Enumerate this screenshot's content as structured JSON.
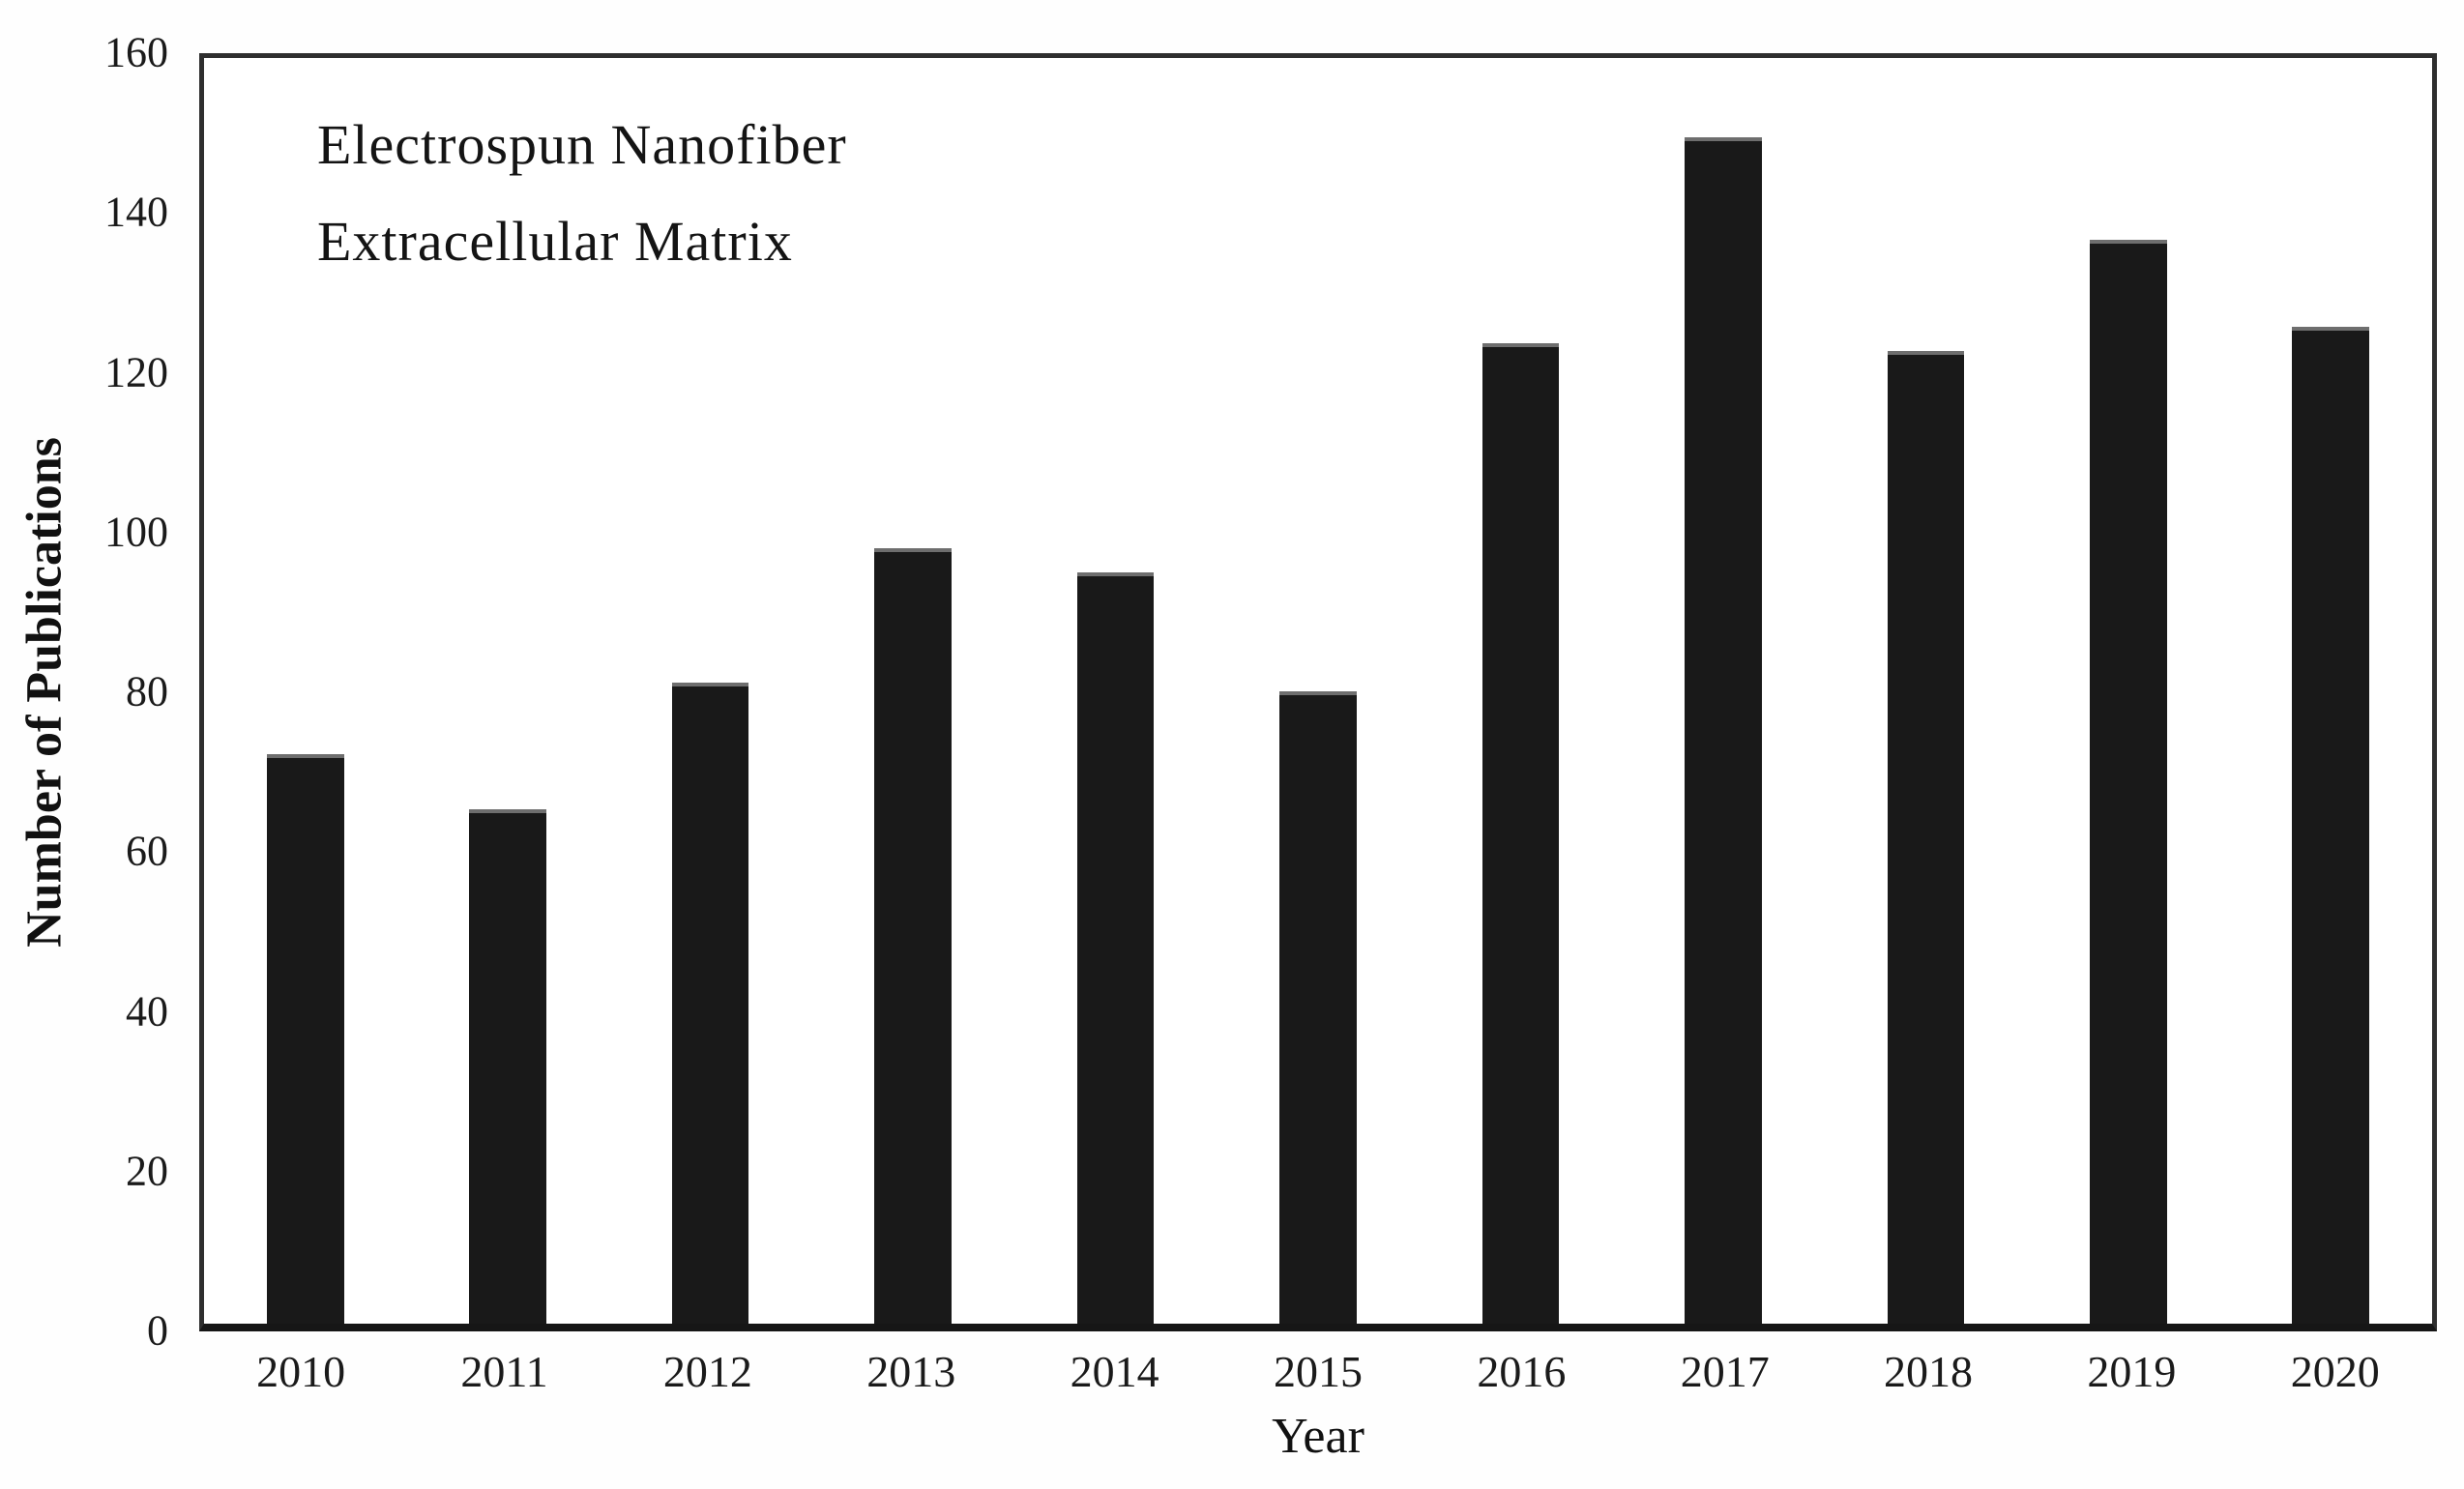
{
  "chart_data": {
    "type": "bar",
    "title": "",
    "xlabel": "Year",
    "ylabel": "Number of Publications",
    "categories": [
      "2010",
      "2011",
      "2012",
      "2013",
      "2014",
      "2015",
      "2016",
      "2017",
      "2018",
      "2019",
      "2020"
    ],
    "values": [
      72,
      65,
      81,
      98,
      95,
      80,
      124,
      150,
      123,
      137,
      126
    ],
    "ylim": [
      0,
      160
    ],
    "yticks": [
      0,
      20,
      40,
      60,
      80,
      100,
      120,
      140,
      160
    ],
    "grid": "off",
    "legend_position": "none",
    "annotations": {
      "line1": "Electrospun Nanofiber",
      "line2": "Extracellular Matrix"
    },
    "bar_color": "#191919",
    "frame_color": "#2e2e2e",
    "background_color": "#ffffff"
  }
}
